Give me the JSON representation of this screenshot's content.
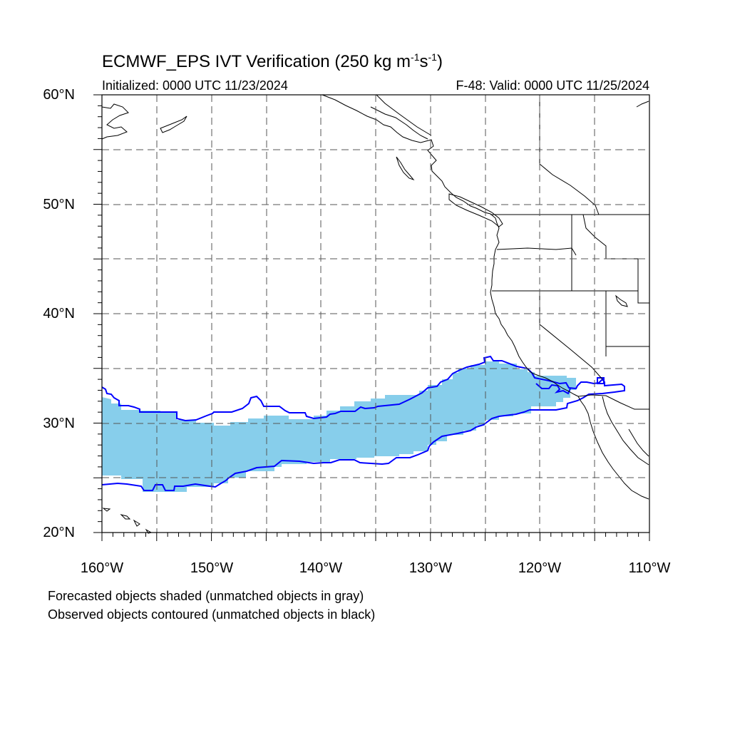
{
  "header": {
    "title_main": "ECMWF_EPS IVT Verification (250 kg m",
    "title_sup1": "-1",
    "title_mid": "s",
    "title_sup2": "-1",
    "title_end": ")",
    "initialized": "Initialized: 0000 UTC 11/23/2024",
    "valid": "F-48: Valid: 0000 UTC 11/25/2024"
  },
  "axes": {
    "lat_labels": [
      "60°N",
      "50°N",
      "40°N",
      "30°N",
      "20°N"
    ],
    "lon_labels": [
      "160°W",
      "150°W",
      "140°W",
      "130°W",
      "120°W",
      "110°W"
    ],
    "lat_range": [
      20,
      60
    ],
    "lon_range": [
      -160,
      -110
    ],
    "grid": "dashed, every 5 degrees"
  },
  "legend": {
    "forecast_note": "Forecasted objects shaded (unmatched objects in gray)",
    "observed_note": "Observed objects contoured (unmatched objects in black)"
  },
  "colors": {
    "forecast_fill": "#87ceeb",
    "observed_contour": "#0000ff",
    "coastline": "#000000",
    "grid": "#555555"
  }
}
